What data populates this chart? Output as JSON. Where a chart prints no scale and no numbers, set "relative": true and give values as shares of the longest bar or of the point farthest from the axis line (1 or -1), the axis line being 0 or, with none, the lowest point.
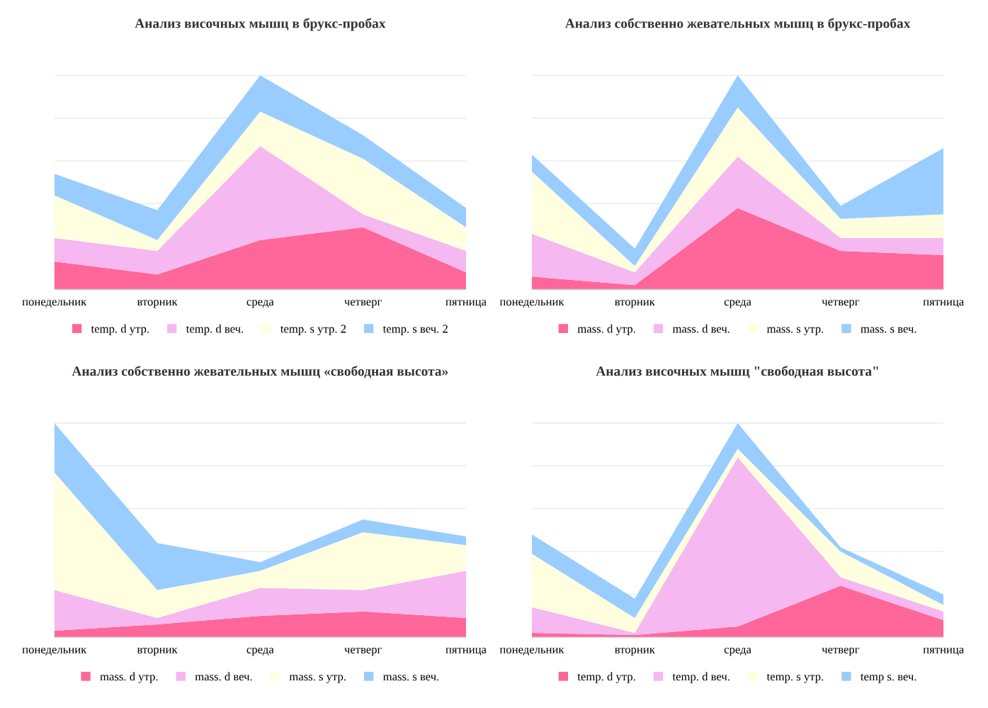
{
  "chart_data": [
    {
      "type": "area",
      "title": "Анализ височных мышц в брукс-пробах",
      "categories": [
        "понедельник",
        "вторник",
        "среда",
        "четверг",
        "пятница"
      ],
      "stacked": true,
      "relative": true,
      "grid": "y",
      "legend": "bottom",
      "series": [
        {
          "name": "temp. d утр.",
          "color": "#ff6699",
          "values": [
            0.13,
            0.07,
            0.23,
            0.29,
            0.08
          ]
        },
        {
          "name": "temp. d веч.",
          "color": "#f5b8f0",
          "values": [
            0.11,
            0.11,
            0.44,
            0.06,
            0.1
          ]
        },
        {
          "name": "temp. s утр. 2",
          "color": "#ffffe0",
          "values": [
            0.2,
            0.05,
            0.16,
            0.26,
            0.11
          ]
        },
        {
          "name": "temp. s веч. 2",
          "color": "#99ccff",
          "values": [
            0.1,
            0.14,
            0.17,
            0.11,
            0.09
          ]
        }
      ]
    },
    {
      "type": "area",
      "title": "Анализ собственно жевательных мышц в брукс-пробах",
      "categories": [
        "понедельник",
        "вторник",
        "среда",
        "четверг",
        "пятница"
      ],
      "stacked": true,
      "relative": true,
      "grid": "y",
      "legend": "bottom",
      "series": [
        {
          "name": "mass. d утр.",
          "color": "#ff6699",
          "values": [
            0.06,
            0.02,
            0.38,
            0.18,
            0.16
          ]
        },
        {
          "name": "mass. d веч.",
          "color": "#f5b8f0",
          "values": [
            0.2,
            0.06,
            0.24,
            0.06,
            0.08
          ]
        },
        {
          "name": "mass. s утр.",
          "color": "#ffffe0",
          "values": [
            0.29,
            0.03,
            0.23,
            0.09,
            0.11
          ]
        },
        {
          "name": "mass. s веч.",
          "color": "#99ccff",
          "values": [
            0.08,
            0.08,
            0.15,
            0.06,
            0.31
          ]
        }
      ]
    },
    {
      "type": "area",
      "title": "Анализ собственно жевательных мышц «свободная высота»",
      "categories": [
        "понедельник",
        "вторник",
        "среда",
        "четверг",
        "пятница"
      ],
      "stacked": true,
      "relative": true,
      "grid": "y",
      "legend": "bottom",
      "series": [
        {
          "name": "mass. d утр.",
          "color": "#ff6699",
          "values": [
            0.03,
            0.06,
            0.1,
            0.12,
            0.09
          ]
        },
        {
          "name": "mass. d веч.",
          "color": "#f5b8f0",
          "values": [
            0.19,
            0.03,
            0.13,
            0.1,
            0.22
          ]
        },
        {
          "name": "mass. s утр.",
          "color": "#ffffe0",
          "values": [
            0.55,
            0.13,
            0.08,
            0.27,
            0.12
          ]
        },
        {
          "name": "mass. s веч.",
          "color": "#99ccff",
          "values": [
            0.23,
            0.22,
            0.04,
            0.06,
            0.04
          ]
        }
      ]
    },
    {
      "type": "area",
      "title": "Анализ височных мышц \"свободная высота\"",
      "categories": [
        "понедельник",
        "вторник",
        "среда",
        "четверг",
        "пятница"
      ],
      "stacked": true,
      "relative": true,
      "grid": "y",
      "legend": "bottom",
      "series": [
        {
          "name": "temp. d утр.",
          "color": "#ff6699",
          "values": [
            0.02,
            0.01,
            0.05,
            0.24,
            0.08
          ]
        },
        {
          "name": "temp. d веч.",
          "color": "#f5b8f0",
          "values": [
            0.12,
            0.01,
            0.79,
            0.04,
            0.04
          ]
        },
        {
          "name": "temp. s утр.",
          "color": "#ffffe0",
          "values": [
            0.25,
            0.07,
            0.04,
            0.12,
            0.03
          ]
        },
        {
          "name": "temp s. веч.",
          "color": "#99ccff",
          "values": [
            0.09,
            0.09,
            0.12,
            0.02,
            0.05
          ]
        }
      ]
    }
  ]
}
